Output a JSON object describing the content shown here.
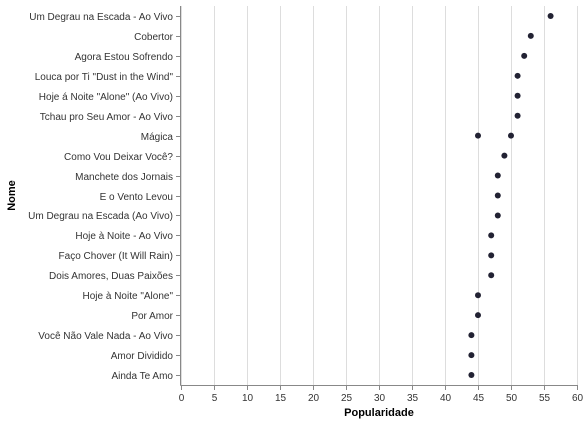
{
  "chart_data": {
    "type": "scatter",
    "title": "",
    "xlabel": "Popularidade",
    "ylabel": "Nome",
    "xlim": [
      0,
      60
    ],
    "x_ticks": [
      0,
      5,
      10,
      15,
      20,
      25,
      30,
      35,
      40,
      45,
      50,
      55,
      60
    ],
    "grid": "vertical",
    "categories": [
      "Um Degrau na Escada - Ao Vivo",
      "Cobertor",
      "Agora Estou Sofrendo",
      "Louca por Ti \"Dust in the Wind\"",
      "Hoje á Noite \"Alone\" (Ao Vivo)",
      "Tchau pro Seu Amor - Ao Vivo",
      "Mágica",
      "Como Vou Deixar Você?",
      "Manchete dos Jornais",
      "E o Vento Levou",
      "Um Degrau na Escada (Ao Vivo)",
      "Hoje à Noite - Ao Vivo",
      "Faço Chover (It Will Rain)",
      "Dois Amores, Duas Paixões",
      "Hoje à Noite \"Alone\"",
      "Por Amor",
      "Você Não Vale Nada - Ao Vivo",
      "Amor Dividido",
      "Ainda Te Amo"
    ],
    "points": [
      {
        "name": "Um Degrau na Escada - Ao Vivo",
        "x": 56
      },
      {
        "name": "Cobertor",
        "x": 53
      },
      {
        "name": "Agora Estou Sofrendo",
        "x": 52
      },
      {
        "name": "Louca por Ti \"Dust in the Wind\"",
        "x": 51
      },
      {
        "name": "Hoje á Noite \"Alone\" (Ao Vivo)",
        "x": 51
      },
      {
        "name": "Tchau pro Seu Amor - Ao Vivo",
        "x": 51
      },
      {
        "name": "Mágica",
        "x": 45
      },
      {
        "name": "Mágica",
        "x": 50
      },
      {
        "name": "Como Vou Deixar Você?",
        "x": 49
      },
      {
        "name": "Manchete dos Jornais",
        "x": 48
      },
      {
        "name": "E o Vento Levou",
        "x": 48
      },
      {
        "name": "Um Degrau na Escada (Ao Vivo)",
        "x": 48
      },
      {
        "name": "Hoje à Noite - Ao Vivo",
        "x": 47
      },
      {
        "name": "Faço Chover (It Will Rain)",
        "x": 47
      },
      {
        "name": "Dois Amores, Duas Paixões",
        "x": 47
      },
      {
        "name": "Hoje à Noite \"Alone\"",
        "x": 45
      },
      {
        "name": "Por Amor",
        "x": 45
      },
      {
        "name": "Você Não Vale Nada - Ao Vivo",
        "x": 44
      },
      {
        "name": "Amor Dividido",
        "x": 44
      },
      {
        "name": "Ainda Te Amo",
        "x": 44
      }
    ],
    "colors": {
      "point": "#222233",
      "grid": "#dddddd",
      "axis": "#888888"
    }
  }
}
